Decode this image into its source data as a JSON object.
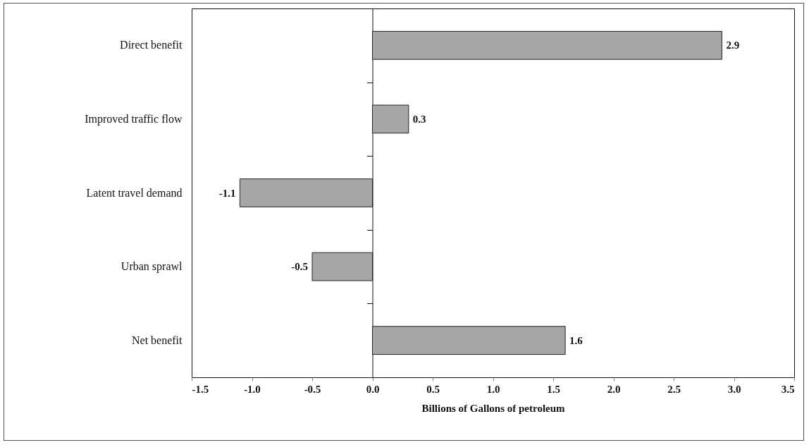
{
  "chart_data": {
    "type": "bar",
    "orientation": "horizontal",
    "xlabel": "Billions of Gallons of petroleum",
    "categories": [
      "Direct benefit",
      "Improved traffic flow",
      "Latent travel demand",
      "Urban sprawl",
      "Net benefit"
    ],
    "values": [
      2.9,
      0.3,
      -1.1,
      -0.5,
      1.6
    ],
    "color": "#a6a6a6",
    "xlim": [
      -1.5,
      3.5
    ],
    "xticks": [
      {
        "value": -1.5,
        "label": "-1.5"
      },
      {
        "value": -1,
        "label": "-1.0"
      },
      {
        "value": -0.5,
        "label": "-0.5"
      },
      {
        "value": 0,
        "label": "0.0"
      },
      {
        "value": 0.5,
        "label": "0.5"
      },
      {
        "value": 1,
        "label": "1.0"
      },
      {
        "value": 1.5,
        "label": "1.5"
      },
      {
        "value": 2,
        "label": "2.0"
      },
      {
        "value": 2.5,
        "label": "2.5"
      },
      {
        "value": 3,
        "label": "3.0"
      },
      {
        "value": 3.5,
        "label": "3.5"
      }
    ],
    "data_labels": true
  }
}
